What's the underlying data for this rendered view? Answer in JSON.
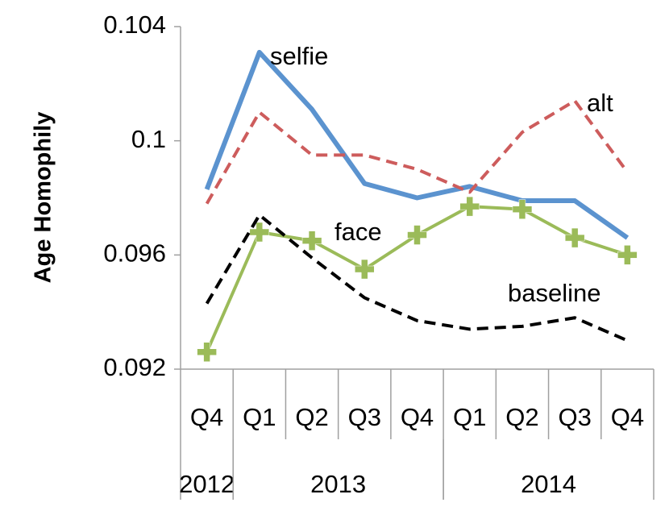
{
  "chart_data": {
    "type": "line",
    "y_axis_label": "Age Homophily",
    "categories": [
      "Q4",
      "Q1",
      "Q2",
      "Q3",
      "Q4",
      "Q1",
      "Q2",
      "Q3",
      "Q4"
    ],
    "category_groups": [
      {
        "label": "2012",
        "count": 1
      },
      {
        "label": "2013",
        "count": 4
      },
      {
        "label": "2014",
        "count": 4
      }
    ],
    "ylim": [
      0.092,
      0.104
    ],
    "yticks": [
      0.092,
      0.096,
      0.1,
      0.104
    ],
    "series": [
      {
        "name": "selfie",
        "color": "#5b93cf",
        "dash": false,
        "values": [
          0.0983,
          0.1031,
          0.1011,
          0.0985,
          0.098,
          0.0984,
          0.0979,
          0.0979,
          0.0966
        ]
      },
      {
        "name": "alt",
        "color": "#cd5c5c",
        "dash": true,
        "values": [
          0.0978,
          0.101,
          0.0995,
          0.0995,
          0.099,
          0.0982,
          0.1003,
          0.1014,
          0.0989
        ]
      },
      {
        "name": "face",
        "color": "#9bbb59",
        "dash": false,
        "marker": "plus",
        "values": [
          0.0926,
          0.0968,
          0.0965,
          0.0955,
          0.0967,
          0.0977,
          0.0976,
          0.0966,
          0.096
        ]
      },
      {
        "name": "baseline",
        "color": "#000000",
        "dash": true,
        "values": [
          0.0943,
          0.0974,
          0.0959,
          0.0945,
          0.0937,
          0.0934,
          0.0935,
          0.0938,
          0.093
        ]
      }
    ]
  }
}
